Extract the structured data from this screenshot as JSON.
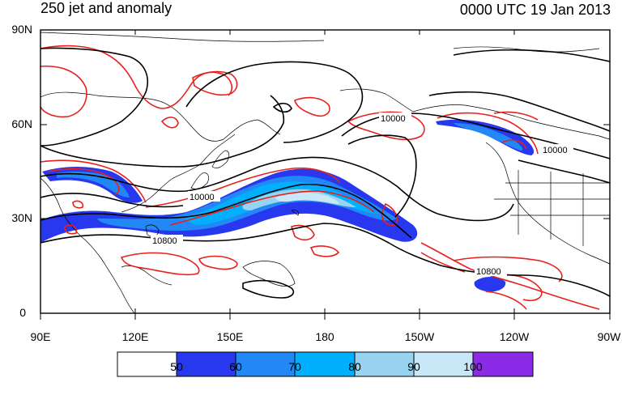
{
  "title_left": "250 jet and anomaly",
  "title_right": "0000 UTC 19 Jan 2013",
  "lat_labels": [
    "90N",
    "60N",
    "30N",
    "0"
  ],
  "lon_labels": [
    "90E",
    "120E",
    "150E",
    "180",
    "150W",
    "120W",
    "90W"
  ],
  "contour_labels": [
    "10000",
    "10000",
    "10800",
    "10800",
    "10000"
  ],
  "colorbar": {
    "labels": [
      "50",
      "60",
      "70",
      "80",
      "90",
      "100"
    ],
    "colors": [
      "#ffffff",
      "#2838ee",
      "#2288f5",
      "#00b0ff",
      "#99d3f2",
      "#c8e8f8",
      "#8b2be8"
    ]
  },
  "colors": {
    "jet_core": "#2838ee",
    "anomaly": "#e8201c",
    "height_contour": "#000000",
    "coast": "#000000"
  }
}
